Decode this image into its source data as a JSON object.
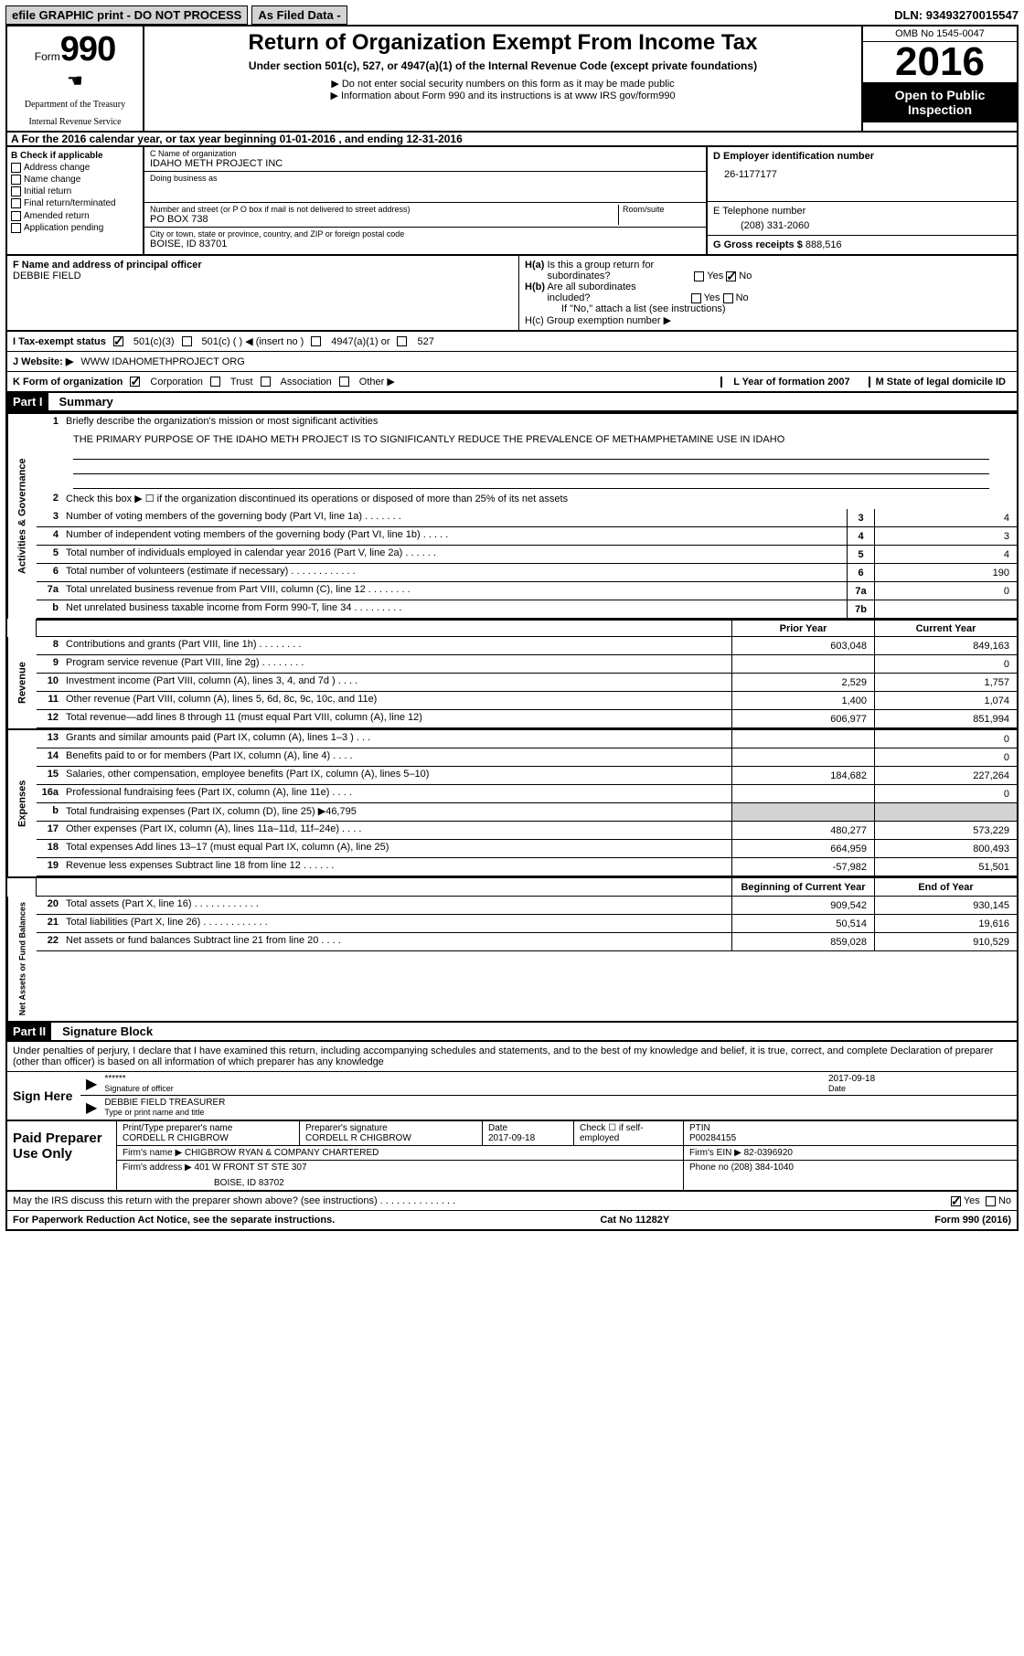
{
  "header": {
    "efile": "efile GRAPHIC print - DO NOT PROCESS",
    "asFiled": "As Filed Data -",
    "dln_label": "DLN:",
    "dln": "93493270015547"
  },
  "formNum": {
    "label": "Form",
    "num": "990",
    "dept": "Department of the Treasury",
    "irs": "Internal Revenue Service"
  },
  "title": {
    "main": "Return of Organization Exempt From Income Tax",
    "sub": "Under section 501(c), 527, or 4947(a)(1) of the Internal Revenue Code (except private foundations)",
    "note1": "▶ Do not enter social security numbers on this form as it may be made public",
    "note2": "▶ Information about Form 990 and its instructions is at www IRS gov/form990"
  },
  "yearBlock": {
    "omb": "OMB No  1545-0047",
    "year": "2016",
    "open": "Open to Public Inspection"
  },
  "rowA": "A   For the 2016 calendar year, or tax year beginning 01-01-2016   , and ending 12-31-2016",
  "colB": {
    "hdr": "B Check if applicable",
    "c1": "Address change",
    "c2": "Name change",
    "c3": "Initial return",
    "c4": "Final return/terminated",
    "c5": "Amended return",
    "c6": "Application pending"
  },
  "colC": {
    "nameLab": "C Name of organization",
    "name": "IDAHO METH PROJECT INC",
    "dbaLab": "Doing business as",
    "addrLab": "Number and street (or P O  box if mail is not delivered to street address)",
    "roomLab": "Room/suite",
    "addr": "PO BOX 738",
    "cityLab": "City or town, state or province, country, and ZIP or foreign postal code",
    "city": "BOISE, ID  83701"
  },
  "colRight": {
    "dLab": "D Employer identification number",
    "d": "26-1177177",
    "eLab": "E Telephone number",
    "e": "(208) 331-2060",
    "gLab": "G Gross receipts $",
    "g": "888,516"
  },
  "rowF": {
    "fLab": "F  Name and address of principal officer",
    "f": "DEBBIE FIELD",
    "ha": "H(a)  Is this a group return for subordinates?",
    "hb": "H(b)  Are all subordinates included?",
    "hbNote": "If \"No,\" attach a list  (see instructions)",
    "hc": "H(c)  Group exemption number ▶"
  },
  "rowI": {
    "lab": "I   Tax-exempt status",
    "o1": "501(c)(3)",
    "o2": "501(c) (   ) ◀ (insert no )",
    "o3": "4947(a)(1) or",
    "o4": "527"
  },
  "rowJ": {
    "lab": "J   Website: ▶",
    "val": "WWW IDAHOMETHPROJECT ORG"
  },
  "rowK": {
    "lab": "K Form of organization",
    "o1": "Corporation",
    "o2": "Trust",
    "o3": "Association",
    "o4": "Other ▶",
    "l": "L Year of formation  2007",
    "m": "M State of legal domicile  ID"
  },
  "parts": {
    "p1": "Part I",
    "p1t": "Summary",
    "p2": "Part II",
    "p2t": "Signature Block"
  },
  "summary": {
    "s1": {
      "lab": "Activities & Governance",
      "lines": [
        {
          "n": "1",
          "d": "Briefly describe the organization's mission or most significant activities",
          "body": "THE PRIMARY PURPOSE OF THE IDAHO METH PROJECT IS TO SIGNIFICANTLY REDUCE THE PREVALENCE OF METHAMPHETAMINE USE IN IDAHO"
        },
        {
          "n": "2",
          "d": "Check this box ▶ ☐  if the organization discontinued its operations or disposed of more than 25% of its net assets"
        },
        {
          "n": "3",
          "d": "Number of voting members of the governing body (Part VI, line 1a)   .    .    .    .    .    .    .",
          "box": "3",
          "v": "4"
        },
        {
          "n": "4",
          "d": "Number of independent voting members of the governing body (Part VI, line 1b)   .    .    .    .    .",
          "box": "4",
          "v": "3"
        },
        {
          "n": "5",
          "d": "Total number of individuals employed in calendar year 2016 (Part V, line 2a)   .    .    .    .    .    .",
          "box": "5",
          "v": "4"
        },
        {
          "n": "6",
          "d": "Total number of volunteers (estimate if necessary)    .    .    .    .    .    .    .    .    .    .    .    .",
          "box": "6",
          "v": "190"
        },
        {
          "n": "7a",
          "d": "Total unrelated business revenue from Part VIII, column (C), line 12   .    .    .    .    .    .    .    .",
          "box": "7a",
          "v": "0"
        },
        {
          "n": "b",
          "d": "Net unrelated business taxable income from Form 990-T, line 34   .    .    .    .    .    .    .    .    .",
          "box": "7b",
          "v": ""
        }
      ]
    },
    "hdr": {
      "py": "Prior Year",
      "cy": "Current Year"
    },
    "s2": {
      "lab": "Revenue",
      "lines": [
        {
          "n": "8",
          "d": "Contributions and grants (Part VIII, line 1h)    .    .    .    .    .    .    .    .",
          "py": "603,048",
          "cy": "849,163"
        },
        {
          "n": "9",
          "d": "Program service revenue (Part VIII, line 2g)    .    .    .    .    .    .    .    .",
          "py": "",
          "cy": "0"
        },
        {
          "n": "10",
          "d": "Investment income (Part VIII, column (A), lines 3, 4, and 7d )    .    .    .    .",
          "py": "2,529",
          "cy": "1,757"
        },
        {
          "n": "11",
          "d": "Other revenue (Part VIII, column (A), lines 5, 6d, 8c, 9c, 10c, and 11e)",
          "py": "1,400",
          "cy": "1,074"
        },
        {
          "n": "12",
          "d": "Total revenue—add lines 8 through 11 (must equal Part VIII, column (A), line 12)",
          "py": "606,977",
          "cy": "851,994"
        }
      ]
    },
    "s3": {
      "lab": "Expenses",
      "lines": [
        {
          "n": "13",
          "d": "Grants and similar amounts paid (Part IX, column (A), lines 1–3 )   .    .    .",
          "py": "",
          "cy": "0"
        },
        {
          "n": "14",
          "d": "Benefits paid to or for members (Part IX, column (A), line 4)   .    .    .    .",
          "py": "",
          "cy": "0"
        },
        {
          "n": "15",
          "d": "Salaries, other compensation, employee benefits (Part IX, column (A), lines 5–10)",
          "py": "184,682",
          "cy": "227,264"
        },
        {
          "n": "16a",
          "d": "Professional fundraising fees (Part IX, column (A), line 11e)   .    .    .    .",
          "py": "",
          "cy": "0"
        },
        {
          "n": "b",
          "d": "Total fundraising expenses (Part IX, column (D), line 25) ▶46,795",
          "py": "shaded",
          "cy": "shaded"
        },
        {
          "n": "17",
          "d": "Other expenses (Part IX, column (A), lines 11a–11d, 11f–24e)   .    .    .    .",
          "py": "480,277",
          "cy": "573,229"
        },
        {
          "n": "18",
          "d": "Total expenses  Add lines 13–17 (must equal Part IX, column (A), line 25)",
          "py": "664,959",
          "cy": "800,493"
        },
        {
          "n": "19",
          "d": "Revenue less expenses  Subtract line 18 from line 12   .    .    .    .    .    .",
          "py": "-57,982",
          "cy": "51,501"
        }
      ]
    },
    "hdr2": {
      "py": "Beginning of Current Year",
      "cy": "End of Year"
    },
    "s4": {
      "lab": "Net Assets or Fund Balances",
      "lines": [
        {
          "n": "20",
          "d": "Total assets (Part X, line 16)   .    .    .    .    .    .    .    .    .    .    .    .",
          "py": "909,542",
          "cy": "930,145"
        },
        {
          "n": "21",
          "d": "Total liabilities (Part X, line 26)   .    .    .    .    .    .    .    .    .    .    .    .",
          "py": "50,514",
          "cy": "19,616"
        },
        {
          "n": "22",
          "d": "Net assets or fund balances  Subtract line 21 from line 20   .    .    .    .",
          "py": "859,028",
          "cy": "910,529"
        }
      ]
    }
  },
  "sig": {
    "intro": "Under penalties of perjury, I declare that I have examined this return, including accompanying schedules and statements, and to the best of my knowledge and belief, it is true, correct, and complete  Declaration of preparer (other than officer) is based on all information of which preparer has any knowledge",
    "signHere": "Sign Here",
    "stars": "******",
    "sigLab": "Signature of officer",
    "date": "2017-09-18",
    "dateLab": "Date",
    "name": "DEBBIE FIELD TREASURER",
    "nameLab": "Type or print name and title"
  },
  "prep": {
    "lab": "Paid Preparer Use Only",
    "r1": {
      "a": "Print/Type preparer's name",
      "av": "CORDELL R CHIGBROW",
      "b": "Preparer's signature",
      "bv": "CORDELL R CHIGBROW",
      "c": "Date",
      "cv": "2017-09-18",
      "d": "Check ☐  if self-employed",
      "e": "PTIN",
      "ev": "P00284155"
    },
    "r2": {
      "a": "Firm's name     ▶",
      "av": "CHIGBROW RYAN & COMPANY CHARTERED",
      "b": "Firm's EIN ▶",
      "bv": "82-0396920"
    },
    "r3": {
      "a": "Firm's address ▶",
      "av": "401 W FRONT ST STE 307",
      "b": "Phone no  (208) 384-1040"
    },
    "r3b": "BOISE, ID  83702"
  },
  "footer": {
    "irs": "May the IRS discuss this return with the preparer shown above? (see instructions)    .    .    .    .    .    .    .    .    .    .    .    .    .    .",
    "yes": "Yes",
    "no": "No",
    "paperwork": "For Paperwork Reduction Act Notice, see the separate instructions.",
    "cat": "Cat No 11282Y",
    "form": "Form 990 (2016)"
  }
}
